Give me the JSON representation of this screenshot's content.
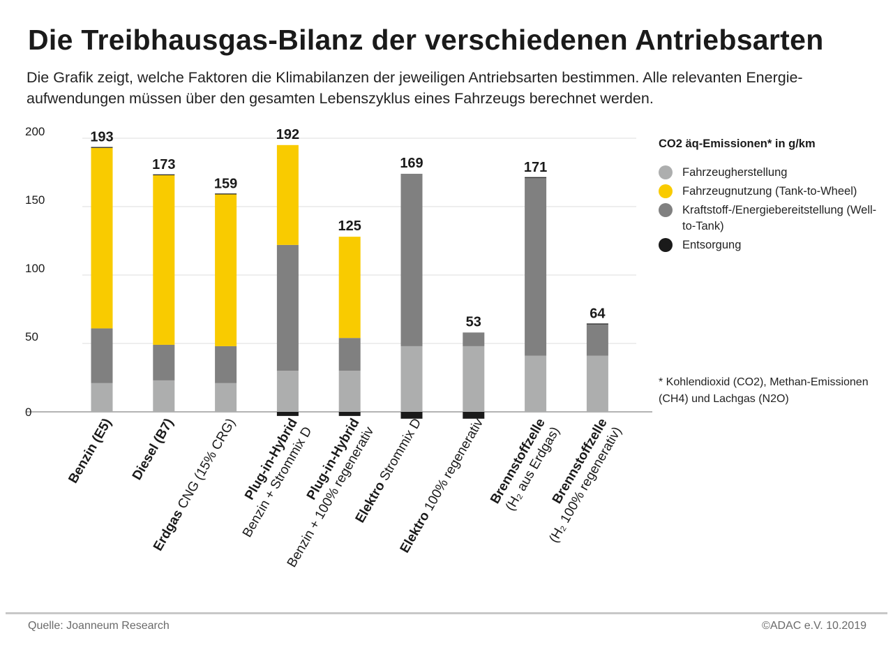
{
  "header": {
    "title": "Die Treibhausgas-Bilanz der verschiedenen Antriebsarten",
    "subtitle": "Die Grafik zeigt, welche Faktoren die Klimabilanzen der jeweiligen Antriebsarten bestimmen. Alle relevanten Energie-aufwendungen müssen über den gesamten Lebenszyklus eines Fahrzeugs berechnet werden."
  },
  "legend": {
    "title": "CO2 äq-Emissionen* in g/km",
    "items": [
      {
        "label": "Fahrzeugherstellung",
        "color": "#adaeae"
      },
      {
        "label": "Fahrzeugnutzung (Tank-to-Wheel)",
        "color": "#f9cb00"
      },
      {
        "label": "Kraftstoff-/Energiebereitstellung (Well-to-Tank)",
        "color": "#808080"
      },
      {
        "label": "Entsorgung",
        "color": "#1a1a1a"
      }
    ]
  },
  "footnote": "* Kohlendioxid (CO2), Methan-Emissionen (CH4) und Lachgas (N2O)",
  "footer": {
    "source": "Quelle:  Joanneum Research",
    "copyright": "©ADAC e.V.  10.2019"
  },
  "chart_data": {
    "type": "bar",
    "stacked": true,
    "title": "Die Treibhausgas-Bilanz der verschiedenen Antriebsarten",
    "ylabel": "CO2 äq-Emissionen in g/km",
    "xlabel": "",
    "ylim": [
      0,
      200
    ],
    "yticks": [
      0,
      50,
      100,
      150,
      200
    ],
    "grid": true,
    "legend_position": "right",
    "categories": [
      {
        "bold": "Benzin (E5)",
        "rest": "",
        "line2": ""
      },
      {
        "bold": "Diesel (B7)",
        "rest": "",
        "line2": ""
      },
      {
        "bold": "Erdgas",
        "rest": " CNG (15% CRG)",
        "line2": ""
      },
      {
        "bold": "Plug-in-Hybrid",
        "rest": "",
        "line2": "Benzin + Strommix D"
      },
      {
        "bold": "Plug-in-Hybrid",
        "rest": "",
        "line2": "Benzin + 100% regenerativ"
      },
      {
        "bold": "Elektro",
        "rest": " Strommix D",
        "line2": ""
      },
      {
        "bold": "Elektro",
        "rest": " 100% regenerativ",
        "line2": ""
      },
      {
        "bold": "Brennstoffzelle",
        "rest": "",
        "line2": "(H₂ aus Erdgas)"
      },
      {
        "bold": "Brennstoffzelle",
        "rest": "",
        "line2": "(H₂ 100% regenerativ)"
      }
    ],
    "totals": [
      193,
      173,
      159,
      192,
      125,
      169,
      53,
      171,
      64
    ],
    "series": [
      {
        "name": "Fahrzeugherstellung",
        "color": "#adaeae",
        "values": [
          21,
          23,
          21,
          30,
          30,
          48,
          48,
          41,
          41
        ]
      },
      {
        "name": "Kraftstoff-/Energiebereitstellung (Well-to-Tank)",
        "color": "#808080",
        "values": [
          40,
          26,
          27,
          92,
          24,
          126,
          10,
          130,
          23
        ]
      },
      {
        "name": "Fahrzeugnutzung (Tank-to-Wheel)",
        "color": "#f9cb00",
        "values": [
          132,
          124,
          111,
          73,
          74,
          0,
          0,
          0,
          0
        ]
      },
      {
        "name": "Entsorgung",
        "color": "#1a1a1a",
        "values": [
          0.5,
          0.5,
          0.5,
          -3,
          -3,
          -5,
          -5,
          0.5,
          0.5
        ]
      }
    ]
  }
}
